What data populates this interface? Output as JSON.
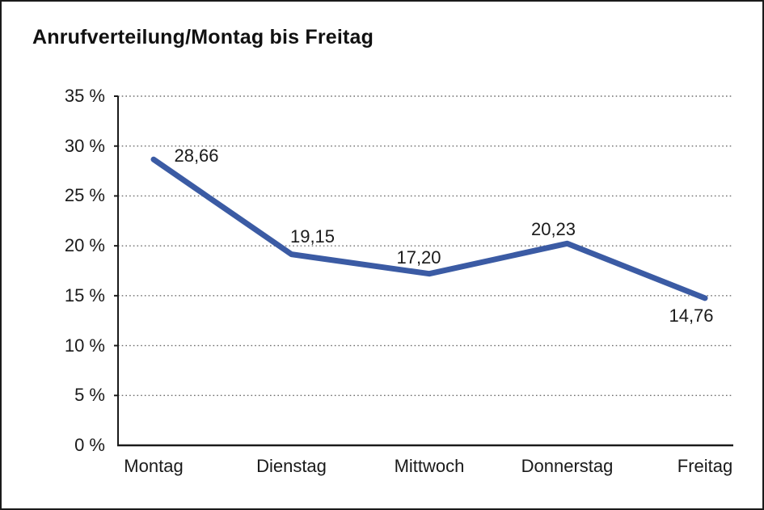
{
  "frame": {
    "border_color": "#1a1a1a",
    "background": "#ffffff"
  },
  "chart": {
    "title": "Anrufverteilung/Montag bis Freitag"
  },
  "chart_data": {
    "type": "line",
    "title": "Anrufverteilung/Montag bis Freitag",
    "categories": [
      "Montag",
      "Dienstag",
      "Mittwoch",
      "Donnerstag",
      "Freitag"
    ],
    "series": [
      {
        "name": "Anrufverteilung",
        "values": [
          28.66,
          19.15,
          17.2,
          20.23,
          14.76
        ],
        "point_labels": [
          "28,66",
          "19,15",
          "17,20",
          "20,23",
          "14,76"
        ],
        "color": "#3b5ba4"
      }
    ],
    "xlabel": "",
    "ylabel": "",
    "ylim": [
      0,
      35
    ],
    "ytick_step": 5,
    "ytick_labels": [
      "0 %",
      "5 %",
      "10 %",
      "15 %",
      "20 %",
      "25 %",
      "30 %",
      "35 %"
    ],
    "grid": "horizontal-dotted",
    "legend_position": "none",
    "axis_color": "#1a1a1a",
    "gridline_color": "#6e6e6e",
    "text_color": "#1a1a1a"
  }
}
